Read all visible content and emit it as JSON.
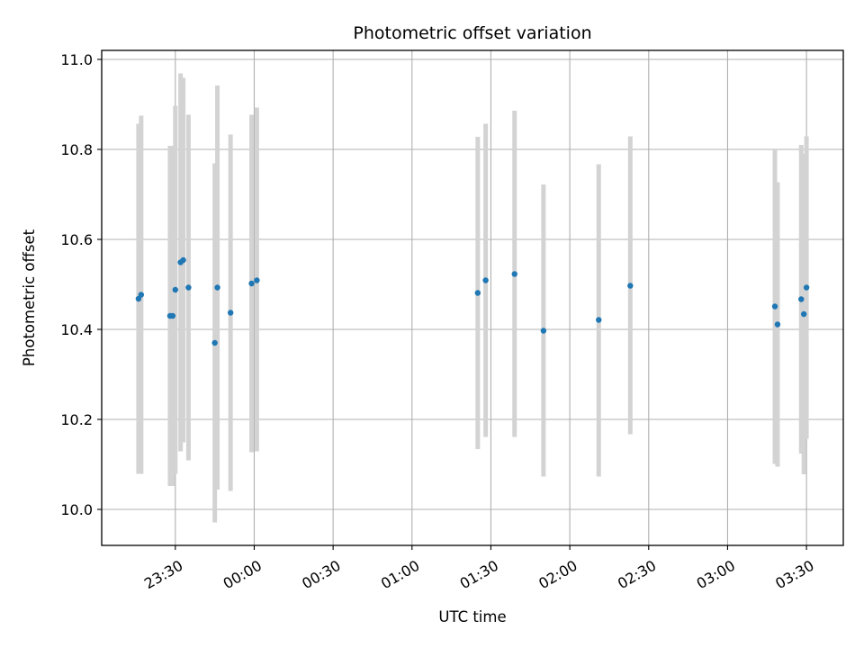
{
  "chart_data": {
    "type": "scatter",
    "title": "Photometric offset variation",
    "xlabel": "UTC time",
    "ylabel": "Photometric offset",
    "x_unit": "UTC time of day (HH:MM), night spans midnight",
    "xlim": [
      "23:02",
      "03:44"
    ],
    "ylim": [
      9.92,
      11.02
    ],
    "x_ticks": [
      "23:30",
      "00:00",
      "00:30",
      "01:00",
      "01:30",
      "02:00",
      "02:30",
      "03:00",
      "03:30"
    ],
    "y_ticks": [
      10.0,
      10.2,
      10.4,
      10.6,
      10.8,
      11.0
    ],
    "grid": true,
    "colors": {
      "point": "#1f77b4",
      "errorbar": "#d3d3d3",
      "grid": "#b0b0b0"
    },
    "points": [
      {
        "x": "23:16",
        "y": 10.468,
        "ylo": 10.079,
        "yhi": 10.857
      },
      {
        "x": "23:17",
        "y": 10.477,
        "ylo": 10.079,
        "yhi": 10.875
      },
      {
        "x": "23:28",
        "y": 10.43,
        "ylo": 10.052,
        "yhi": 10.808
      },
      {
        "x": "23:29",
        "y": 10.43,
        "ylo": 10.052,
        "yhi": 10.808
      },
      {
        "x": "23:30",
        "y": 10.488,
        "ylo": 10.079,
        "yhi": 10.897
      },
      {
        "x": "23:32",
        "y": 10.549,
        "ylo": 10.129,
        "yhi": 10.969
      },
      {
        "x": "23:33",
        "y": 10.554,
        "ylo": 10.149,
        "yhi": 10.959
      },
      {
        "x": "23:35",
        "y": 10.493,
        "ylo": 10.109,
        "yhi": 10.877
      },
      {
        "x": "23:45",
        "y": 10.37,
        "ylo": 9.971,
        "yhi": 10.769
      },
      {
        "x": "23:46",
        "y": 10.493,
        "ylo": 10.044,
        "yhi": 10.942
      },
      {
        "x": "23:51",
        "y": 10.437,
        "ylo": 10.041,
        "yhi": 10.833
      },
      {
        "x": "23:59",
        "y": 10.502,
        "ylo": 10.127,
        "yhi": 10.877
      },
      {
        "x": "00:01",
        "y": 10.509,
        "ylo": 10.129,
        "yhi": 10.893
      },
      {
        "x": "01:25",
        "y": 10.481,
        "ylo": 10.134,
        "yhi": 10.828
      },
      {
        "x": "01:28",
        "y": 10.509,
        "ylo": 10.161,
        "yhi": 10.857
      },
      {
        "x": "01:39",
        "y": 10.523,
        "ylo": 10.161,
        "yhi": 10.886
      },
      {
        "x": "01:50",
        "y": 10.397,
        "ylo": 10.073,
        "yhi": 10.722
      },
      {
        "x": "02:11",
        "y": 10.421,
        "ylo": 10.073,
        "yhi": 10.767
      },
      {
        "x": "02:23",
        "y": 10.497,
        "ylo": 10.167,
        "yhi": 10.829
      },
      {
        "x": "03:18",
        "y": 10.451,
        "ylo": 10.101,
        "yhi": 10.8
      },
      {
        "x": "03:19",
        "y": 10.411,
        "ylo": 10.095,
        "yhi": 10.727
      },
      {
        "x": "03:28",
        "y": 10.467,
        "ylo": 10.124,
        "yhi": 10.81
      },
      {
        "x": "03:29",
        "y": 10.434,
        "ylo": 10.078,
        "yhi": 10.79
      },
      {
        "x": "03:30",
        "y": 10.493,
        "ylo": 10.157,
        "yhi": 10.829
      }
    ]
  }
}
